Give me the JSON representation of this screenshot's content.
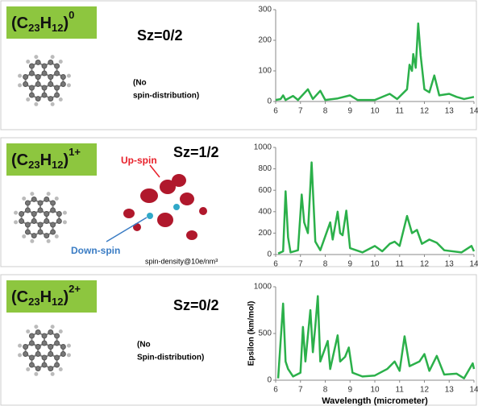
{
  "panels": [
    {
      "formula": {
        "pre": "(C",
        "n1": "23",
        "mid": "H",
        "n2": "12",
        "post": ")",
        "charge": "0"
      },
      "sz": "Sz=0/2",
      "note": [
        "(No",
        "spin-distribution)"
      ]
    },
    {
      "formula": {
        "pre": "(C",
        "n1": "23",
        "mid": "H",
        "n2": "12",
        "post": ")",
        "charge": "1+"
      },
      "sz": "Sz=1/2",
      "up": "Up-spin",
      "down": "Down-spin",
      "density": "spin-density@10e/nm³"
    },
    {
      "formula": {
        "pre": "(C",
        "n1": "23",
        "mid": "H",
        "n2": "12",
        "post": ")",
        "charge": "2+"
      },
      "sz": "Sz=0/2",
      "note": [
        "(No",
        "Spin-distribution)"
      ]
    }
  ],
  "chart_data": [
    {
      "type": "line",
      "xlim": [
        6,
        14
      ],
      "xticks": [
        6,
        7,
        8,
        9,
        10,
        11,
        12,
        13,
        14
      ],
      "ylim": [
        0,
        300
      ],
      "yticks": [
        0,
        100,
        200,
        300
      ],
      "series": [
        {
          "color": "#2bb04a",
          "x": [
            6,
            6.2,
            6.3,
            6.4,
            6.7,
            6.9,
            7.3,
            7.5,
            7.8,
            8.0,
            8.5,
            9.0,
            9.3,
            10.0,
            10.6,
            10.9,
            11.3,
            11.4,
            11.5,
            11.55,
            11.65,
            11.75,
            11.85,
            12.0,
            12.2,
            12.4,
            12.6,
            13.0,
            13.3,
            13.6,
            14
          ],
          "values": [
            5,
            8,
            20,
            5,
            18,
            5,
            40,
            8,
            35,
            5,
            10,
            20,
            5,
            5,
            25,
            8,
            40,
            120,
            100,
            155,
            110,
            255,
            150,
            40,
            30,
            85,
            20,
            25,
            15,
            8,
            15
          ]
        }
      ]
    },
    {
      "type": "line",
      "xlim": [
        6,
        14
      ],
      "xticks": [
        6,
        7,
        8,
        9,
        10,
        11,
        12,
        13,
        14
      ],
      "ylim": [
        0,
        1000
      ],
      "yticks": [
        0,
        200,
        400,
        600,
        800,
        1000
      ],
      "series": [
        {
          "color": "#2bb04a",
          "x": [
            6.1,
            6.3,
            6.4,
            6.5,
            6.6,
            6.9,
            7.05,
            7.15,
            7.3,
            7.45,
            7.6,
            7.8,
            8.2,
            8.3,
            8.5,
            8.6,
            8.7,
            8.85,
            9.0,
            9.5,
            10.0,
            10.3,
            10.6,
            10.8,
            11.0,
            11.3,
            11.5,
            11.7,
            11.9,
            12.2,
            12.5,
            12.8,
            13.5,
            13.9,
            14
          ],
          "values": [
            10,
            30,
            590,
            160,
            20,
            40,
            560,
            300,
            200,
            860,
            120,
            40,
            300,
            140,
            400,
            200,
            180,
            410,
            60,
            20,
            80,
            30,
            100,
            120,
            80,
            360,
            200,
            230,
            100,
            140,
            110,
            40,
            20,
            80,
            30
          ]
        }
      ]
    },
    {
      "type": "line",
      "xlim": [
        6,
        14
      ],
      "xticks": [
        6,
        7,
        8,
        9,
        10,
        11,
        12,
        13,
        14
      ],
      "ylim": [
        0,
        1000
      ],
      "yticks": [
        0,
        500,
        1000
      ],
      "ylabel": "Epsilon (km/mol)",
      "xlabel": "Wavelength (micrometer)",
      "series": [
        {
          "color": "#2bb04a",
          "x": [
            6.1,
            6.3,
            6.4,
            6.5,
            6.7,
            7.0,
            7.1,
            7.2,
            7.3,
            7.4,
            7.5,
            7.6,
            7.7,
            7.8,
            8.1,
            8.2,
            8.5,
            8.6,
            8.8,
            8.95,
            9.1,
            9.5,
            10.0,
            10.5,
            10.8,
            11.0,
            11.2,
            11.4,
            11.8,
            12.0,
            12.2,
            12.5,
            12.8,
            13.3,
            13.6,
            13.95,
            14
          ],
          "values": [
            20,
            820,
            200,
            120,
            40,
            80,
            570,
            200,
            480,
            750,
            300,
            580,
            900,
            200,
            420,
            120,
            480,
            200,
            250,
            350,
            80,
            40,
            50,
            120,
            200,
            100,
            470,
            150,
            200,
            280,
            100,
            260,
            60,
            70,
            20,
            180,
            120
          ]
        }
      ]
    }
  ]
}
